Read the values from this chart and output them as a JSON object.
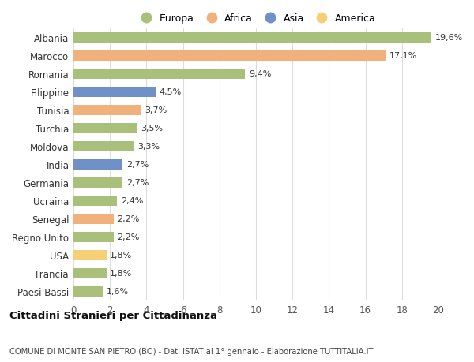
{
  "countries": [
    "Albania",
    "Marocco",
    "Romania",
    "Filippine",
    "Tunisia",
    "Turchia",
    "Moldova",
    "India",
    "Germania",
    "Ucraina",
    "Senegal",
    "Regno Unito",
    "USA",
    "Francia",
    "Paesi Bassi"
  ],
  "values": [
    19.6,
    17.1,
    9.4,
    4.5,
    3.7,
    3.5,
    3.3,
    2.7,
    2.7,
    2.4,
    2.2,
    2.2,
    1.8,
    1.8,
    1.6
  ],
  "labels": [
    "19,6%",
    "17,1%",
    "9,4%",
    "4,5%",
    "3,7%",
    "3,5%",
    "3,3%",
    "2,7%",
    "2,7%",
    "2,4%",
    "2,2%",
    "2,2%",
    "1,8%",
    "1,8%",
    "1,6%"
  ],
  "colors": [
    "#a8c07a",
    "#f0b27a",
    "#a8c07a",
    "#7090c8",
    "#f0b27a",
    "#a8c07a",
    "#a8c07a",
    "#7090c8",
    "#a8c07a",
    "#a8c07a",
    "#f0b27a",
    "#a8c07a",
    "#f5d077",
    "#a8c07a",
    "#a8c07a"
  ],
  "legend_labels": [
    "Europa",
    "Africa",
    "Asia",
    "America"
  ],
  "legend_colors": [
    "#a8c07a",
    "#f0b27a",
    "#7090c8",
    "#f5d077"
  ],
  "title": "Cittadini Stranieri per Cittadinanza",
  "subtitle": "COMUNE DI MONTE SAN PIETRO (BO) - Dati ISTAT al 1° gennaio - Elaborazione TUTTITALIA.IT",
  "xlim": [
    0,
    20
  ],
  "xticks": [
    0,
    2,
    4,
    6,
    8,
    10,
    12,
    14,
    16,
    18,
    20
  ],
  "bg_color": "#ffffff",
  "grid_color": "#dddddd",
  "bar_height": 0.55
}
